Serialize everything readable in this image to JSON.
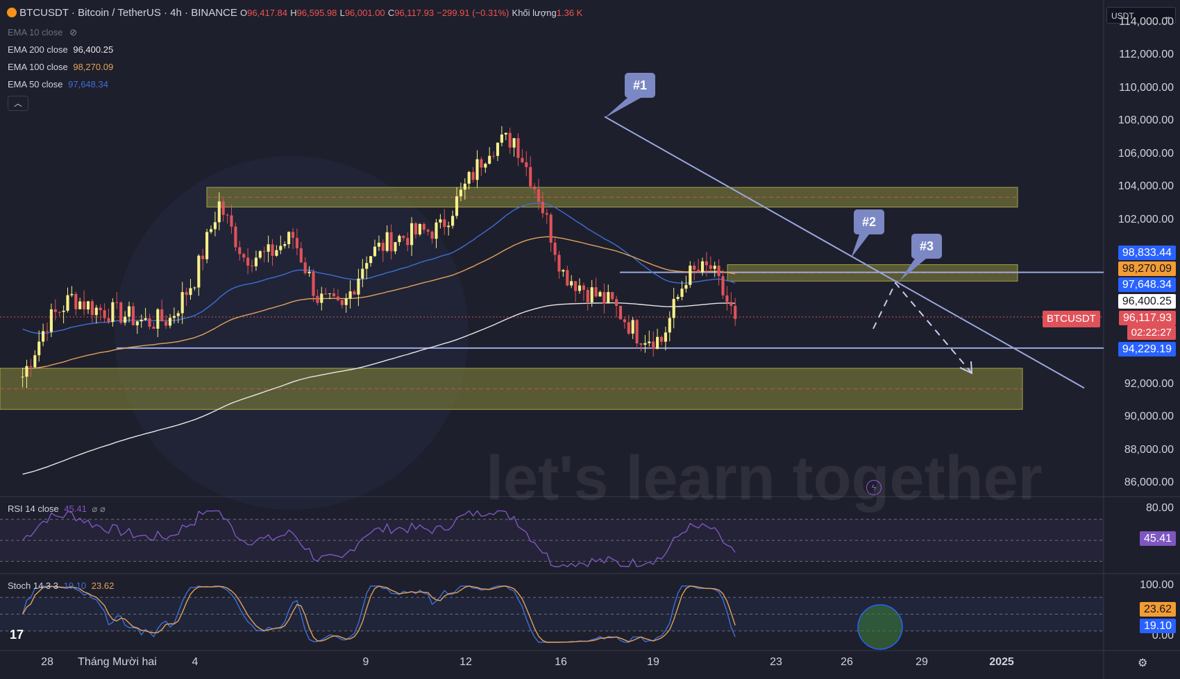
{
  "header": {
    "symbol": "BTCUSDT",
    "title": "· Bitcoin / TetherUS · 4h · BINANCE",
    "o_label": "O",
    "o_val": "96,417.84",
    "h_label": "H",
    "h_val": "96,595.98",
    "l_label": "L",
    "l_val": "96,001.00",
    "c_label": "C",
    "c_val": "96,117.93",
    "change": "−299.91 (−0.31%)",
    "vol_label": "Khối lượng",
    "vol_val": "1.36 K"
  },
  "currency_select": "USDT",
  "indicators": [
    {
      "name": "EMA 10 close",
      "value": "",
      "color": "#6b6e7c"
    },
    {
      "name": "EMA 200 close",
      "value": "96,400.25",
      "color": "#e8e8e8"
    },
    {
      "name": "EMA 100 close",
      "value": "98,270.09",
      "color": "#e3a25a"
    },
    {
      "name": "EMA 50 close",
      "value": "97,648.34",
      "color": "#3d6fd8"
    }
  ],
  "price_ticks": [
    "114,000.00",
    "112,000.00",
    "110,000.00",
    "108,000.00",
    "106,000.00",
    "104,000.00",
    "102,000.00",
    "100,000.00",
    "98,000.00",
    "96,000.00",
    "94,000.00",
    "92,000.00",
    "90,000.00",
    "88,000.00",
    "86,000.00"
  ],
  "price_badges": {
    "line_upper": "98,833.44",
    "ema100": "98,270.09",
    "ema50": "97,648.34",
    "ema200": "96,400.25",
    "last": "96,117.93",
    "countdown": "02:22:27",
    "line_lower": "94,229.19",
    "symbol_tag": "BTCUSDT"
  },
  "callouts": [
    "#1",
    "#2",
    "#3"
  ],
  "x_ticks": [
    "28",
    "Tháng Mười hai",
    "4",
    "9",
    "12",
    "16",
    "19",
    "23",
    "26",
    "29",
    "2025"
  ],
  "rsi": {
    "label": "RSI 14 close",
    "value": "45.41",
    "extra": "⌀ ⌀",
    "top_tick": "80.00",
    "badge": "45.41"
  },
  "stoch": {
    "label": "Stoch 14 3 3",
    "k": "19.10",
    "d": "23.62",
    "top_tick": "100.00",
    "bottom_tick": "0.00"
  },
  "watermark": "let's learn together",
  "colors": {
    "up": "#f7f08a",
    "down": "#e0525a",
    "ema50": "#3d6fd8",
    "ema100": "#e3a25a",
    "ema200": "#e8e8e8",
    "zone": "#8a8a3a",
    "hline": "#9aa9e0",
    "rsi": "#7e57c2",
    "stoch_k": "#3d6fd8",
    "stoch_d": "#e3a25a"
  },
  "chart_data": {
    "type": "candlestick",
    "timeframe": "4h",
    "ylim": [
      85000,
      114500
    ],
    "horizontal_levels": [
      98833.44,
      94229.19
    ],
    "zones": [
      [
        102800,
        104000
      ],
      [
        90500,
        93000
      ],
      [
        98300,
        99300
      ]
    ],
    "trendline": {
      "from_date": "Dec 17",
      "from_price": 108300,
      "to_date": "Dec 31",
      "to_price": 91800
    },
    "path_points": [
      {
        "date": "26",
        "price": 96000
      },
      {
        "date": "27",
        "price": 97800
      },
      {
        "date": "29",
        "price": 93000
      }
    ],
    "price_path_daily": [
      {
        "date": "Nov 27",
        "close": 92500
      },
      {
        "date": "Nov 28",
        "close": 95800
      },
      {
        "date": "Nov 29",
        "close": 97300
      },
      {
        "date": "Nov 30",
        "close": 96600
      },
      {
        "date": "Dec 1",
        "close": 96300
      },
      {
        "date": "Dec 2",
        "close": 95800
      },
      {
        "date": "Dec 3",
        "close": 96000
      },
      {
        "date": "Dec 4",
        "close": 98500
      },
      {
        "date": "Dec 5",
        "close": 103000
      },
      {
        "date": "Dec 6",
        "close": 99800
      },
      {
        "date": "Dec 7",
        "close": 99900
      },
      {
        "date": "Dec 8",
        "close": 101000
      },
      {
        "date": "Dec 9",
        "close": 97300
      },
      {
        "date": "Dec 10",
        "close": 96500
      },
      {
        "date": "Dec 11",
        "close": 99800
      },
      {
        "date": "Dec 12",
        "close": 100800
      },
      {
        "date": "Dec 13",
        "close": 101200
      },
      {
        "date": "Dec 14",
        "close": 101500
      },
      {
        "date": "Dec 15",
        "close": 104000
      },
      {
        "date": "Dec 16",
        "close": 106500
      },
      {
        "date": "Dec 17",
        "close": 107000
      },
      {
        "date": "Dec 18",
        "close": 103500
      },
      {
        "date": "Dec 19",
        "close": 98800
      },
      {
        "date": "Dec 20",
        "close": 97700
      },
      {
        "date": "Dec 21",
        "close": 96900
      },
      {
        "date": "Dec 22",
        "close": 95100
      },
      {
        "date": "Dec 23",
        "close": 94700
      },
      {
        "date": "Dec 24",
        "close": 98600
      },
      {
        "date": "Dec 25",
        "close": 99100
      },
      {
        "date": "Dec 26",
        "close": 96000
      }
    ],
    "ema50_last": 97648.34,
    "ema100_last": 98270.09,
    "ema200_last": 96400.25,
    "rsi_last": 45.41,
    "stoch_k_last": 19.1,
    "stoch_d_last": 23.62
  }
}
